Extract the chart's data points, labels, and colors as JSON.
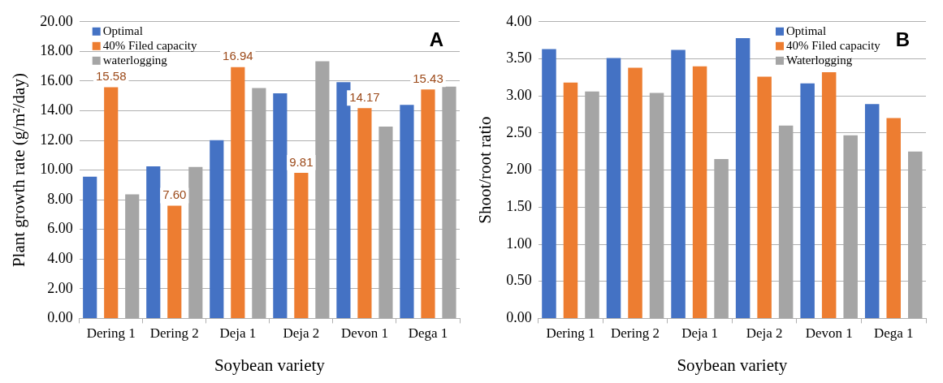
{
  "chart_data": [
    {
      "type": "bar",
      "categories": [
        "Dering 1",
        "Dering 2",
        "Deja 1",
        "Deja 2",
        "Devon 1",
        "Dega 1"
      ],
      "xlabel": "Soybean variety",
      "ylabel": "Plant growth rate (g/m²/day)",
      "ylim": [
        0,
        20
      ],
      "yticks": [
        {
          "value": 0,
          "label": "0.00"
        },
        {
          "value": 2,
          "label": "2.00"
        },
        {
          "value": 4,
          "label": "4.00"
        },
        {
          "value": 6,
          "label": "6.00"
        },
        {
          "value": 8,
          "label": "8.00"
        },
        {
          "value": 10,
          "label": "10.00"
        },
        {
          "value": 12,
          "label": "12.00"
        },
        {
          "value": 14,
          "label": "14.00"
        },
        {
          "value": 16,
          "label": "16.00"
        },
        {
          "value": 18,
          "label": "18.00"
        },
        {
          "value": 20,
          "label": "20.00"
        }
      ],
      "grid": "y",
      "legend": "top left",
      "annotations": [
        "A"
      ],
      "series": [
        {
          "name": "Optimal",
          "color": "#4472c4",
          "values": [
            9.55,
            10.25,
            12.02,
            15.17,
            15.93,
            14.4
          ]
        },
        {
          "name": "40% Filed capacity",
          "color": "#ed7d31",
          "values": [
            15.58,
            7.6,
            16.94,
            9.81,
            14.17,
            15.43
          ],
          "value_labels": [
            "15.58",
            "7.60",
            "16.94",
            "9.81",
            "14.17",
            "15.43"
          ]
        },
        {
          "name": "waterlogging",
          "color": "#a5a5a5",
          "values": [
            8.36,
            10.21,
            15.53,
            17.34,
            12.93,
            15.63
          ]
        }
      ]
    },
    {
      "type": "bar",
      "categories": [
        "Dering 1",
        "Dering 2",
        "Deja 1",
        "Deja 2",
        "Devon 1",
        "Dega 1"
      ],
      "xlabel": "Soybean variety",
      "ylabel": "Shoot/root ratio",
      "ylim": [
        0,
        4
      ],
      "yticks": [
        {
          "value": 0,
          "label": "0.00"
        },
        {
          "value": 0.5,
          "label": "0.50"
        },
        {
          "value": 1,
          "label": "1.00"
        },
        {
          "value": 1.5,
          "label": "1.50"
        },
        {
          "value": 2,
          "label": "2.00"
        },
        {
          "value": 2.5,
          "label": "2.50"
        },
        {
          "value": 3,
          "label": "3.00"
        },
        {
          "value": 3.5,
          "label": "3.50"
        },
        {
          "value": 4,
          "label": "4.00"
        }
      ],
      "grid": "y",
      "legend": "top right",
      "annotations": [
        "B"
      ],
      "series": [
        {
          "name": "Optimal",
          "color": "#4472c4",
          "values": [
            3.63,
            3.51,
            3.62,
            3.78,
            3.17,
            2.89
          ]
        },
        {
          "name": "40% Filed capacity",
          "color": "#ed7d31",
          "values": [
            3.18,
            3.38,
            3.4,
            3.26,
            3.32,
            2.7
          ]
        },
        {
          "name": "Waterlogging",
          "color": "#a5a5a5",
          "values": [
            3.06,
            3.04,
            2.15,
            2.6,
            2.47,
            2.25
          ]
        }
      ]
    }
  ]
}
